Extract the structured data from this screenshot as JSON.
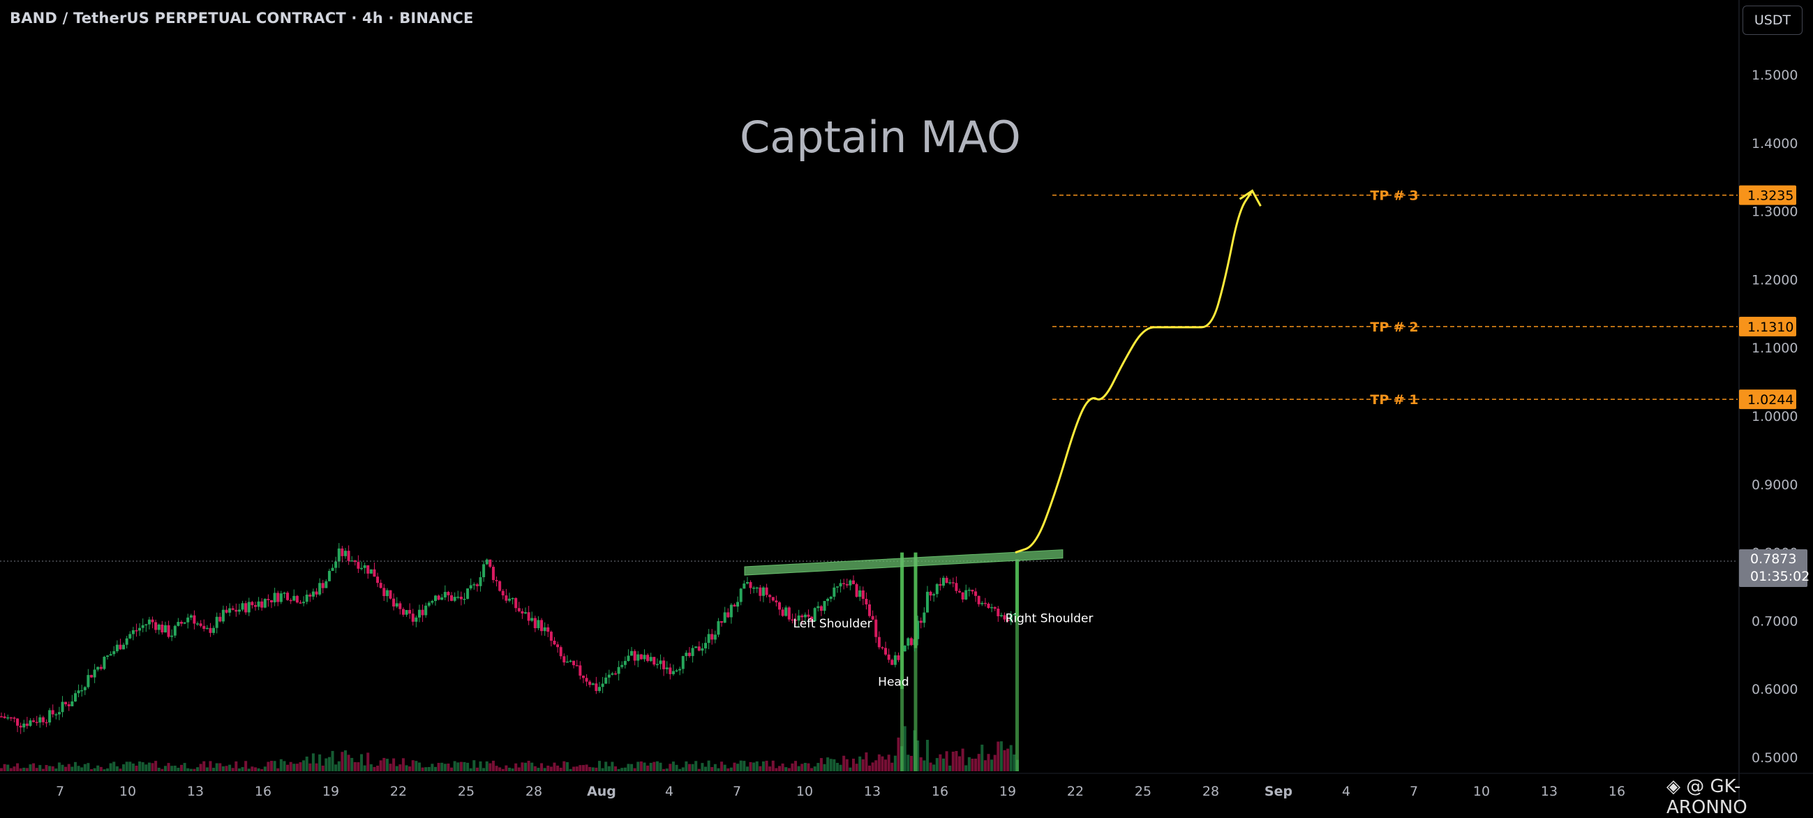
{
  "header": {
    "title": "BAND / TetherUS PERPETUAL CONTRACT · 4h · BINANCE"
  },
  "toolbar": {
    "currency_label": "USDT"
  },
  "watermark": {
    "text": "Captain MAO"
  },
  "credit": {
    "text": "◈ @ GK-ARONNO"
  },
  "colors": {
    "background": "#000000",
    "bull": "#26a69a",
    "bull_bright": "#4caf50",
    "bear": "#e91e63",
    "tp_line": "#f7931a",
    "projection": "#ffeb3b",
    "neckline": "#66bb6a"
  },
  "chart_data": {
    "type": "candlestick",
    "title": "BAND / TetherUS PERPETUAL CONTRACT · 4h · BINANCE",
    "y_axis": {
      "side": "right",
      "ylim": [
        0.48,
        1.56
      ],
      "ticks": [
        "1.5000",
        "1.4000",
        "1.3000",
        "1.2000",
        "1.1000",
        "1.0000",
        "0.9000",
        "0.8000",
        "0.7000",
        "0.6000",
        "0.5000"
      ],
      "tick_values": [
        1.5,
        1.4,
        1.3,
        1.2,
        1.1,
        1.0,
        0.9,
        0.8,
        0.7,
        0.6,
        0.5
      ]
    },
    "x_axis": {
      "ticks": [
        "7",
        "10",
        "13",
        "16",
        "19",
        "22",
        "25",
        "28",
        "Aug",
        "4",
        "7",
        "10",
        "13",
        "16",
        "19",
        "22",
        "25",
        "28",
        "Sep",
        "4",
        "7",
        "10",
        "13",
        "16"
      ],
      "bold_ticks": [
        "Aug",
        "Sep"
      ],
      "tick_index": [
        0,
        1,
        2,
        3,
        4,
        5,
        6,
        7,
        8,
        9,
        10,
        11,
        12,
        13,
        14,
        15,
        16,
        17,
        18,
        19,
        20,
        21,
        22,
        23
      ]
    },
    "price_path": [
      [
        0.0,
        0.56
      ],
      [
        0.3,
        0.55
      ],
      [
        0.7,
        0.56
      ],
      [
        1.0,
        0.58
      ],
      [
        1.3,
        0.62
      ],
      [
        1.6,
        0.65
      ],
      [
        1.9,
        0.68
      ],
      [
        2.2,
        0.7
      ],
      [
        2.5,
        0.68
      ],
      [
        2.8,
        0.71
      ],
      [
        3.0,
        0.68
      ],
      [
        3.3,
        0.71
      ],
      [
        3.6,
        0.72
      ],
      [
        3.9,
        0.73
      ],
      [
        4.2,
        0.74
      ],
      [
        4.5,
        0.73
      ],
      [
        4.8,
        0.76
      ],
      [
        5.0,
        0.8
      ],
      [
        5.2,
        0.79
      ],
      [
        5.5,
        0.77
      ],
      [
        5.8,
        0.72
      ],
      [
        6.1,
        0.7
      ],
      [
        6.4,
        0.74
      ],
      [
        6.8,
        0.73
      ],
      [
        7.0,
        0.75
      ],
      [
        7.15,
        0.79
      ],
      [
        7.4,
        0.74
      ],
      [
        7.7,
        0.71
      ],
      [
        8.0,
        0.69
      ],
      [
        8.3,
        0.64
      ],
      [
        8.6,
        0.62
      ],
      [
        8.8,
        0.6
      ],
      [
        9.0,
        0.62
      ],
      [
        9.3,
        0.65
      ],
      [
        9.6,
        0.64
      ],
      [
        9.9,
        0.63
      ],
      [
        10.2,
        0.65
      ],
      [
        10.5,
        0.68
      ],
      [
        10.8,
        0.72
      ],
      [
        11.0,
        0.75
      ],
      [
        11.3,
        0.74
      ],
      [
        11.6,
        0.71
      ],
      [
        11.9,
        0.7
      ],
      [
        12.2,
        0.73
      ],
      [
        12.5,
        0.76
      ],
      [
        12.8,
        0.72
      ],
      [
        13.0,
        0.66
      ],
      [
        13.2,
        0.64
      ],
      [
        13.5,
        0.68
      ],
      [
        13.7,
        0.74
      ],
      [
        13.9,
        0.76
      ],
      [
        14.2,
        0.74
      ],
      [
        14.5,
        0.73
      ],
      [
        14.8,
        0.7
      ],
      [
        15.0,
        0.72
      ],
      [
        15.05,
        0.79
      ]
    ],
    "volume_profile": [
      [
        0.0,
        0.15
      ],
      [
        2.0,
        0.2
      ],
      [
        4.0,
        0.2
      ],
      [
        5.0,
        0.5
      ],
      [
        6.0,
        0.25
      ],
      [
        8.0,
        0.2
      ],
      [
        10.0,
        0.2
      ],
      [
        12.0,
        0.25
      ],
      [
        13.0,
        0.4
      ],
      [
        13.3,
        1.0
      ],
      [
        13.5,
        0.8
      ],
      [
        14.0,
        0.5
      ],
      [
        14.5,
        0.55
      ],
      [
        15.0,
        0.6
      ]
    ],
    "last_price": {
      "label": "0.7873",
      "value": 0.7873,
      "countdown": "01:35:02"
    },
    "take_profits": [
      {
        "name": "TP # 3",
        "value": 1.3235,
        "label": "1.3235"
      },
      {
        "name": "TP # 2",
        "value": 1.131,
        "label": "1.1310"
      },
      {
        "name": "TP # 1",
        "value": 1.0244,
        "label": "1.0244"
      }
    ],
    "neckline": {
      "from": [
        11.0,
        0.775
      ],
      "to": [
        15.7,
        0.8
      ]
    },
    "projection_path": [
      [
        15.0,
        0.8
      ],
      [
        15.3,
        0.81
      ],
      [
        15.6,
        0.89
      ],
      [
        15.9,
        0.99
      ],
      [
        16.1,
        1.03
      ],
      [
        16.3,
        1.02
      ],
      [
        16.6,
        1.08
      ],
      [
        16.9,
        1.13
      ],
      [
        17.2,
        1.13
      ],
      [
        17.6,
        1.13
      ],
      [
        17.9,
        1.13
      ],
      [
        18.1,
        1.2
      ],
      [
        18.3,
        1.3
      ],
      [
        18.5,
        1.33
      ]
    ],
    "annotations": [
      {
        "text": "Left Shoulder",
        "at": [
          12.3,
          0.69
        ]
      },
      {
        "text": "Head",
        "at": [
          13.2,
          0.605
        ]
      },
      {
        "text": "Right Shoulder",
        "at": [
          15.5,
          0.698
        ]
      }
    ]
  }
}
